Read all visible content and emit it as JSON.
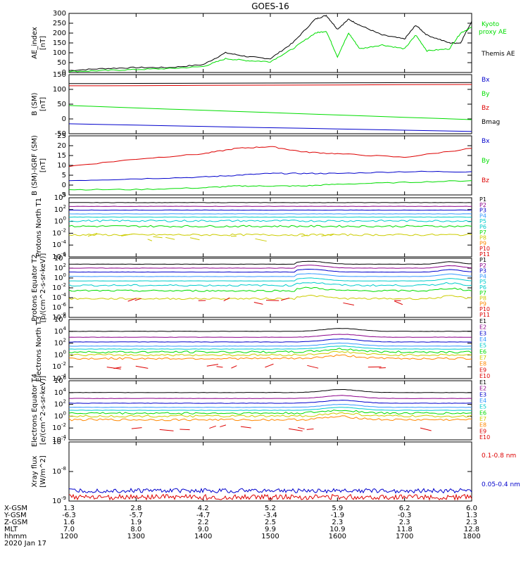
{
  "title": "GOES-16",
  "x_ticks": [
    "1200",
    "1300",
    "1400",
    "1500",
    "1600",
    "1700",
    "1800"
  ],
  "footer": {
    "rows": [
      {
        "label": "X-GSM",
        "values": [
          "1.3",
          "2.8",
          "4.2",
          "5.2",
          "5.9",
          "6.2",
          "6.0"
        ]
      },
      {
        "label": "Y-GSM",
        "values": [
          "-6.3",
          "-5.7",
          "-4.7",
          "-3.4",
          "-1.9",
          "-0.3",
          "1.3"
        ]
      },
      {
        "label": "Z-GSM",
        "values": [
          "1.6",
          "1.9",
          "2.2",
          "2.5",
          "2.3",
          "2.3",
          "2.3"
        ]
      },
      {
        "label": "MLT",
        "values": [
          "7.0",
          "8.0",
          "9.0",
          "9.9",
          "10.9",
          "11.8",
          "12.8"
        ]
      },
      {
        "label": "hhmm",
        "values": [
          "1200",
          "1300",
          "1400",
          "1500",
          "1600",
          "1700",
          "1800"
        ]
      }
    ],
    "date": "2020 Jan 17"
  },
  "colors": {
    "black": "#000000",
    "green": "#00dd00",
    "blue": "#0000cc",
    "red": "#dd0000",
    "navy": "#000080",
    "purple": "#6a006a",
    "cyan": "#00cccc",
    "yellow": "#cccc00",
    "orange": "#ff8800",
    "lightblue": "#3399ff"
  },
  "chart_data": [
    {
      "type": "line",
      "ylabel": "AE_index [nT]",
      "yticks": [
        "300",
        "250",
        "200",
        "150",
        "100",
        "50",
        "0"
      ],
      "ylim": [
        0,
        300
      ],
      "x": [
        1200,
        1230,
        1300,
        1330,
        1400,
        1420,
        1440,
        1500,
        1520,
        1540,
        1550,
        1600,
        1610,
        1620,
        1640,
        1700,
        1710,
        1720,
        1740,
        1750,
        1800
      ],
      "series": [
        {
          "name": "Themis AE",
          "color": "#000000",
          "values": [
            10,
            20,
            25,
            25,
            40,
            100,
            80,
            70,
            150,
            270,
            290,
            220,
            270,
            240,
            190,
            170,
            240,
            190,
            150,
            150,
            260
          ]
        },
        {
          "name": "Kyoto proxy AE",
          "color": "#00dd00",
          "values": [
            5,
            10,
            15,
            20,
            30,
            70,
            60,
            55,
            120,
            200,
            210,
            80,
            200,
            120,
            140,
            120,
            190,
            110,
            120,
            200,
            230
          ]
        }
      ]
    },
    {
      "type": "line",
      "ylabel": "B (SM) [nT]",
      "yticks": [
        "150",
        "100",
        "50",
        "0",
        "-50"
      ],
      "ylim": [
        -60,
        150
      ],
      "x": [
        1200,
        1800
      ],
      "series": [
        {
          "name": "Bx",
          "color": "#0000cc",
          "values": [
            -25,
            -52
          ]
        },
        {
          "name": "By",
          "color": "#00dd00",
          "values": [
            40,
            -10
          ]
        },
        {
          "name": "Bz",
          "color": "#dd0000",
          "values": [
            110,
            115
          ]
        },
        {
          "name": "Bmag",
          "color": "#000000",
          "values": [
            118,
            122
          ]
        }
      ]
    },
    {
      "type": "line",
      "ylabel": "B (SM)-IGRF (SM) [nT]",
      "yticks": [
        "25",
        "20",
        "15",
        "10",
        "5",
        "0",
        "-5"
      ],
      "ylim": [
        -6,
        27
      ],
      "x": [
        1200,
        1300,
        1400,
        1430,
        1500,
        1530,
        1600,
        1700,
        1800
      ],
      "series": [
        {
          "name": "Bx",
          "color": "#0000cc",
          "values": [
            2,
            3,
            4,
            5,
            6,
            6,
            6,
            7,
            7
          ]
        },
        {
          "name": "By",
          "color": "#00dd00",
          "values": [
            -3,
            -3,
            -2,
            -1,
            -1,
            -1,
            0,
            1,
            2
          ]
        },
        {
          "name": "Bz",
          "color": "#dd0000",
          "values": [
            10,
            14,
            17,
            20,
            21,
            18,
            17,
            15,
            20
          ]
        }
      ]
    },
    {
      "type": "line",
      "ylabel": "Protons North T1",
      "yticks": [
        "10^4",
        "10^2",
        "10^0",
        "10^-2",
        "10^-4",
        "10^-6"
      ],
      "ylim": [
        -7,
        4
      ],
      "legend": [
        "P1",
        "P2",
        "P3",
        "P4",
        "P5",
        "P6",
        "P7",
        "P8",
        "P9",
        "P10",
        "P11"
      ]
    },
    {
      "type": "line",
      "ylabel": "Protons Equator T2 [p/(cm^2-s-sr-keV)]",
      "yticks": [
        "10^4",
        "10^2",
        "10^0",
        "10^-2",
        "10^-4",
        "10^-6",
        "10^-8"
      ],
      "ylim": [
        -8,
        4
      ],
      "legend": [
        "P1",
        "P2",
        "P3",
        "P4",
        "P5",
        "P6",
        "P7",
        "P8",
        "P9",
        "P10",
        "P11"
      ]
    },
    {
      "type": "line",
      "ylabel": "Electrons North T3",
      "yticks": [
        "10^6",
        "10^4",
        "10^2",
        "10^0",
        "10^-2",
        "10^-4"
      ],
      "ylim": [
        -4,
        6
      ],
      "legend": [
        "E1",
        "E2",
        "E3",
        "E4",
        "E5",
        "E6",
        "E7",
        "E8",
        "E9",
        "E10"
      ]
    },
    {
      "type": "line",
      "ylabel": "Electrons Equator T4 [e/(cm^2-s-sr-keV)]",
      "yticks": [
        "10^6",
        "10^4",
        "10^2",
        "10^0",
        "10^-2",
        "10^-4"
      ],
      "ylim": [
        -4,
        6
      ],
      "legend": [
        "E1",
        "E2",
        "E3",
        "E4",
        "E5",
        "E6",
        "E7",
        "E8",
        "E9",
        "E10"
      ]
    },
    {
      "type": "line",
      "ylabel": "Xray flux [W/m^2]",
      "yticks": [
        "10^-7",
        "10^-8",
        "10^-9"
      ],
      "ylim": [
        -9,
        -7
      ],
      "series": [
        {
          "name": "0.1-0.8 nm",
          "color": "#dd0000"
        },
        {
          "name": "0.05-0.4 nm",
          "color": "#0000cc"
        }
      ]
    }
  ]
}
